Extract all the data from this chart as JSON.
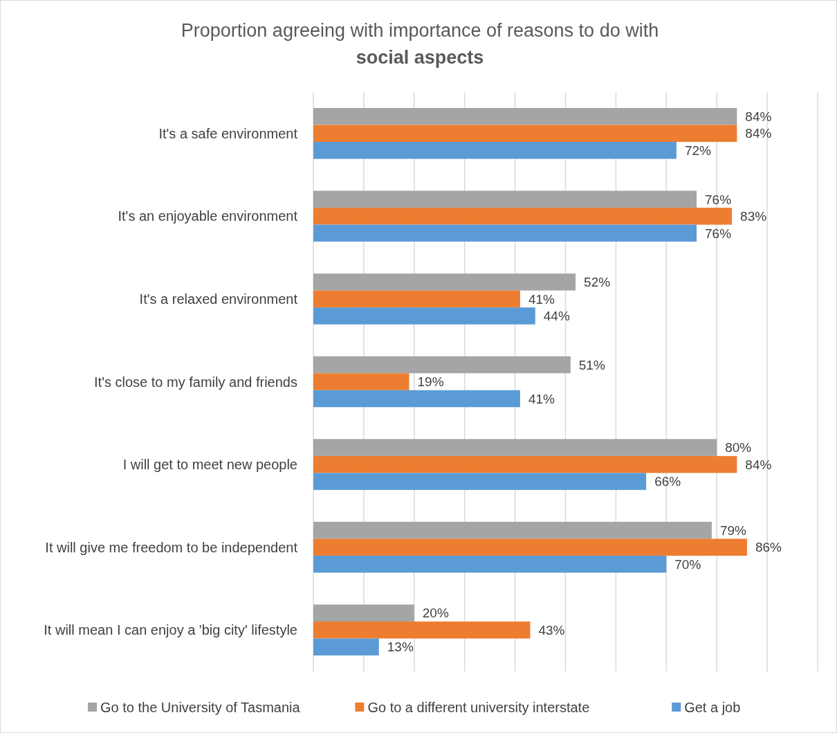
{
  "chart_data": {
    "type": "bar",
    "orientation": "horizontal",
    "title": "Proportion agreeing with importance of reasons to do with",
    "subtitle": "social aspects",
    "categories": [
      "It's a safe environment",
      "It's an enjoyable environment",
      "It's a relaxed environment",
      "It's close to my family and friends",
      "I will get to meet new people",
      "It will give me freedom to be independent",
      "It will mean I can enjoy a 'big city' lifestyle"
    ],
    "series": [
      {
        "name": "Go to the University of Tasmania",
        "color": "#a5a5a5",
        "values": [
          84,
          76,
          52,
          51,
          80,
          79,
          20
        ],
        "value_labels": [
          "84%",
          "76%",
          "52%",
          "51%",
          "80%",
          "79%",
          "20%"
        ]
      },
      {
        "name": "Go to a different university interstate",
        "color": "#ed7d31",
        "values": [
          84,
          83,
          41,
          19,
          84,
          86,
          43
        ],
        "value_labels": [
          "84%",
          "83%",
          "41%",
          "19%",
          "84%",
          "86%",
          "43%"
        ]
      },
      {
        "name": "Get a job",
        "color": "#5b9bd5",
        "values": [
          72,
          76,
          44,
          41,
          66,
          70,
          13
        ],
        "value_labels": [
          "72%",
          "76%",
          "44%",
          "41%",
          "66%",
          "70%",
          "13%"
        ]
      }
    ],
    "xlim": [
      0,
      100
    ],
    "xticks": [
      {
        "value": 0,
        "label": null
      },
      {
        "value": 10,
        "label": null
      },
      {
        "value": 20,
        "label": null
      },
      {
        "value": 30,
        "label": null
      },
      {
        "value": 40,
        "label": null
      },
      {
        "value": 50,
        "label": null
      },
      {
        "value": 60,
        "label": null
      },
      {
        "value": 70,
        "label": null
      },
      {
        "value": 80,
        "label": null
      },
      {
        "value": 90,
        "label": null
      },
      {
        "value": 100,
        "label": null
      }
    ],
    "tick_labels": "y",
    "grid": "x",
    "legend": "bottom"
  }
}
